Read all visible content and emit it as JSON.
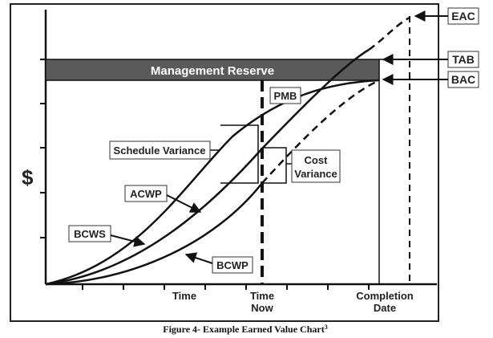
{
  "diagram": {
    "y_axis_symbol": "$",
    "management_reserve_label": "Management Reserve",
    "right_labels": {
      "eac": "EAC",
      "tab": "TAB",
      "bac": "BAC"
    },
    "curve_labels": {
      "pmb": "PMB",
      "acwp": "ACWP",
      "bcws": "BCWS",
      "bcwp": "BCWP"
    },
    "variance_labels": {
      "schedule": "Schedule Variance",
      "cost_line1": "Cost",
      "cost_line2": "Variance"
    },
    "x_labels": {
      "time": "Time",
      "time_now_line1": "Time",
      "time_now_line2": "Now",
      "completion_line1": "Completion",
      "completion_line2": "Date"
    }
  },
  "caption": {
    "text": "Figure 4- Example Earned Value Chart",
    "superscript": "3"
  },
  "colors": {
    "line": "#111111",
    "reserve_bar": "#5a5a5a",
    "reserve_text": "#ffffff",
    "frame": "#222222"
  }
}
